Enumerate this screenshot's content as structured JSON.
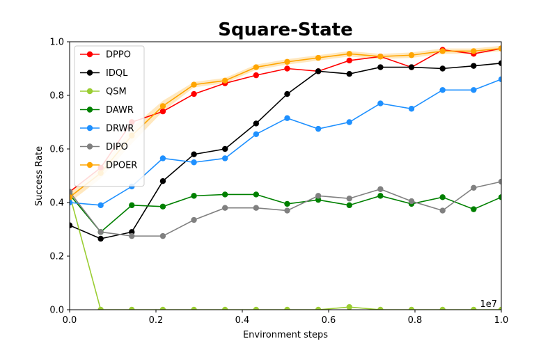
{
  "chart_data": {
    "type": "line",
    "title": "Square-State",
    "xlabel": "Environment steps",
    "ylabel": "Success Rate",
    "x_offset_label": "1e7",
    "xlim": [
      0,
      1.0
    ],
    "ylim": [
      0,
      1.0
    ],
    "x_ticks": [
      "0.0",
      "0.2",
      "0.4",
      "0.6",
      "0.8",
      "1.0"
    ],
    "y_ticks": [
      "0.0",
      "0.2",
      "0.4",
      "0.6",
      "0.8",
      "1.0"
    ],
    "grid": false,
    "legend_position": "upper-left",
    "x": [
      0.0,
      0.072,
      0.144,
      0.216,
      0.288,
      0.36,
      0.432,
      0.504,
      0.576,
      0.648,
      0.72,
      0.792,
      0.864,
      0.936,
      1.0
    ],
    "series": [
      {
        "name": "DPPO",
        "color": "#ff0000",
        "values": [
          0.44,
          0.53,
          0.7,
          0.74,
          0.805,
          0.845,
          0.875,
          0.9,
          0.89,
          0.93,
          0.945,
          0.905,
          0.97,
          0.955,
          0.975
        ]
      },
      {
        "name": "IDQL",
        "color": "#000000",
        "values": [
          0.315,
          0.265,
          0.29,
          0.48,
          0.58,
          0.6,
          0.695,
          0.805,
          0.89,
          0.88,
          0.905,
          0.905,
          0.9,
          0.91,
          0.92
        ]
      },
      {
        "name": "QSM",
        "color": "#9acd32",
        "values": [
          0.43,
          0.0,
          0.0,
          0.0,
          0.0,
          0.0,
          0.0,
          0.0,
          0.0,
          0.01,
          0.0,
          0.0,
          0.0,
          0.0,
          0.0
        ]
      },
      {
        "name": "DAWR",
        "color": "#008000",
        "values": [
          0.43,
          0.29,
          0.39,
          0.385,
          0.425,
          0.43,
          0.43,
          0.395,
          0.41,
          0.39,
          0.425,
          0.395,
          0.42,
          0.375,
          0.42
        ]
      },
      {
        "name": "DRWR",
        "color": "#1e90ff",
        "values": [
          0.4,
          0.39,
          0.46,
          0.565,
          0.55,
          0.565,
          0.655,
          0.715,
          0.675,
          0.7,
          0.77,
          0.75,
          0.82,
          0.82,
          0.86
        ]
      },
      {
        "name": "DIPO",
        "color": "#808080",
        "values": [
          0.44,
          0.29,
          0.275,
          0.275,
          0.335,
          0.38,
          0.38,
          0.37,
          0.425,
          0.415,
          0.45,
          0.405,
          0.37,
          0.455,
          0.478
        ]
      },
      {
        "name": "DPOER",
        "color": "#ffa500",
        "values": [
          0.42,
          0.51,
          0.65,
          0.76,
          0.84,
          0.855,
          0.905,
          0.925,
          0.94,
          0.955,
          0.945,
          0.95,
          0.965,
          0.965,
          0.975
        ],
        "band_lower": [
          0.4,
          0.49,
          0.62,
          0.74,
          0.83,
          0.845,
          0.895,
          0.915,
          0.93,
          0.945,
          0.935,
          0.94,
          0.955,
          0.955,
          0.965
        ],
        "band_upper": [
          0.44,
          0.53,
          0.68,
          0.78,
          0.85,
          0.865,
          0.915,
          0.935,
          0.95,
          0.965,
          0.955,
          0.96,
          0.975,
          0.975,
          0.985
        ]
      }
    ]
  }
}
